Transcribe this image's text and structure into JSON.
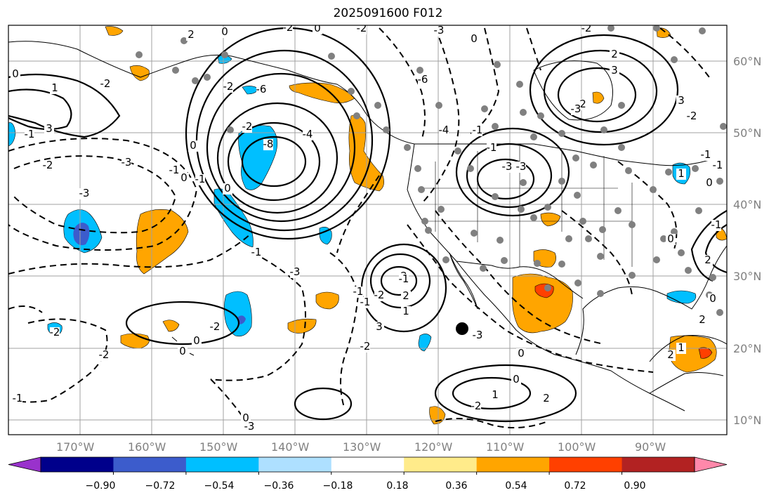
{
  "title": "2025091600 F012",
  "longitude_labels": [
    "170°W",
    "160°W",
    "150°W",
    "140°W",
    "130°W",
    "120°W",
    "110°W",
    "100°W",
    "90°W"
  ],
  "latitude_labels": [
    "60°N",
    "50°N",
    "40°N",
    "30°N",
    "20°N",
    "10°N"
  ],
  "colorbar": {
    "colors": [
      "#9932cc",
      "#00008b",
      "#3c5ccc",
      "#00bfff",
      "#aee0ff",
      "#ffffff",
      "#ffeb8a",
      "#ffa500",
      "#ff4000",
      "#b22222",
      "#ff88aa"
    ],
    "tick_labels": [
      "−0.90",
      "−0.72",
      "−0.54",
      "−0.36",
      "−0.18",
      "0.18",
      "0.36",
      "0.54",
      "0.72",
      "0.90"
    ]
  },
  "contour_labels": [
    "-2",
    "0",
    "2",
    "-2",
    "3",
    "-3",
    "0",
    "1",
    "-2",
    "-1",
    "0",
    "-2",
    "-3",
    "0",
    "-1",
    "-2",
    "2",
    "-3",
    "-6",
    "-2",
    "0",
    "-3",
    "-1",
    "-1",
    "-4",
    "-3",
    "0",
    "-6",
    "-4",
    "-8",
    "-2",
    "-1",
    "-1",
    "0",
    "-3",
    "2",
    "1",
    "-2",
    "-1",
    "-1",
    "2",
    "2",
    "3",
    "-2",
    "-2",
    "2",
    "3",
    "-3",
    "0",
    "-2",
    "-1",
    "-2",
    "0",
    "-2",
    "0",
    "-3",
    "-2",
    "1",
    "2",
    "0",
    "0",
    "-3",
    "2",
    "-1",
    "0",
    "2",
    "1",
    "-1",
    "0",
    "-1",
    "0",
    "1",
    "2",
    "3",
    "-1"
  ]
}
